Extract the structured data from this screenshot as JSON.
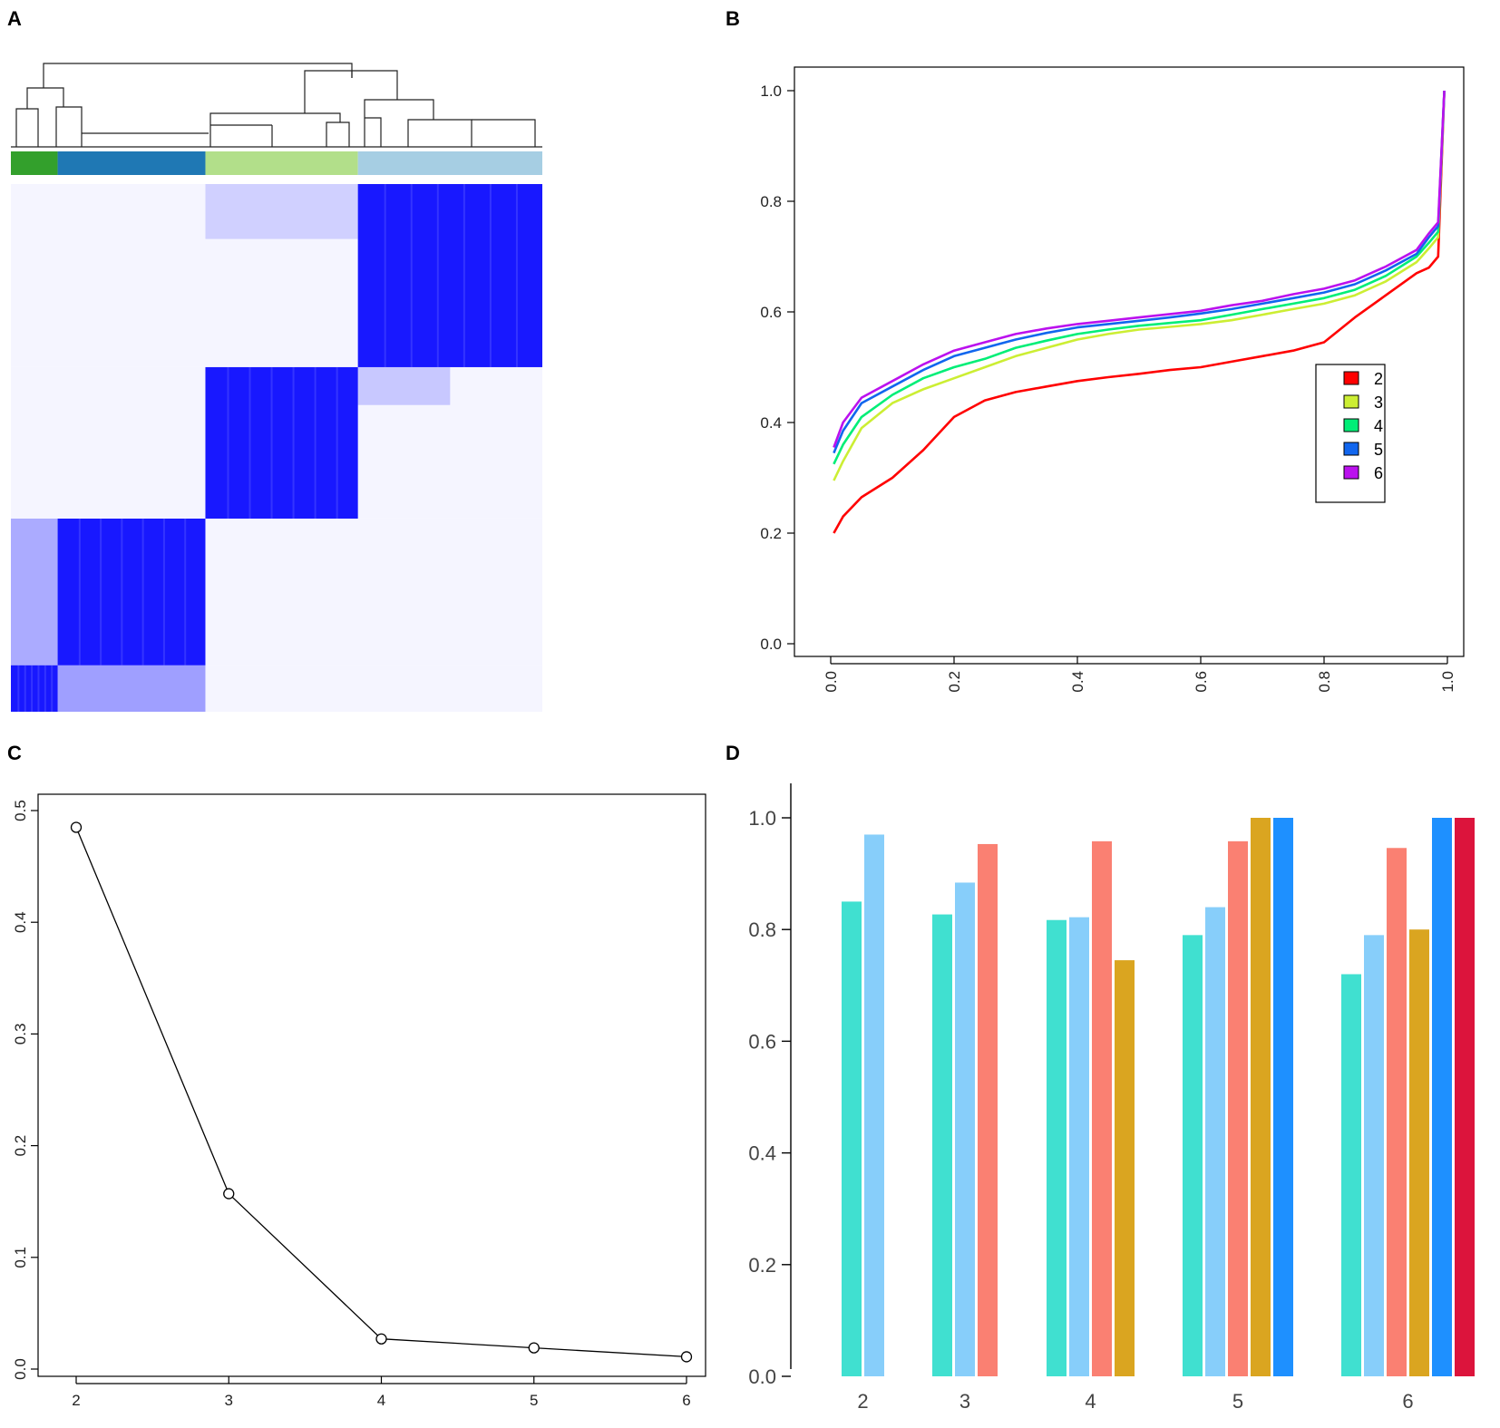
{
  "panels": {
    "a": "A",
    "b": "B",
    "c": "C",
    "d": "D"
  },
  "chart_data": [
    {
      "panel": "A",
      "type": "heatmap",
      "title": "",
      "cluster_colors": [
        "#33a02c",
        "#1f78b4",
        "#b2df8a",
        "#a6cee3"
      ],
      "cluster_fractions": [
        0.088,
        0.278,
        0.287,
        0.347
      ],
      "heatmap_color": "#0000ff",
      "description_note": "consensus matrix, blocks ordered to match dendrogram"
    },
    {
      "panel": "B",
      "type": "line",
      "title": "",
      "xlabel": "",
      "ylabel": "",
      "xlim": [
        0.0,
        1.0
      ],
      "ylim": [
        0.0,
        1.0
      ],
      "xticks": [
        "0.0",
        "0.2",
        "0.4",
        "0.6",
        "0.8",
        "1.0"
      ],
      "yticks": [
        "0.0",
        "0.2",
        "0.4",
        "0.6",
        "0.8",
        "1.0"
      ],
      "legend_position": "center-right",
      "x": [
        0.005,
        0.02,
        0.05,
        0.1,
        0.15,
        0.2,
        0.25,
        0.3,
        0.35,
        0.4,
        0.45,
        0.5,
        0.55,
        0.6,
        0.65,
        0.7,
        0.75,
        0.8,
        0.85,
        0.9,
        0.95,
        0.97,
        0.985,
        0.995
      ],
      "series": [
        {
          "name": "2",
          "color": "#ff0000",
          "values": [
            0.2,
            0.23,
            0.265,
            0.3,
            0.35,
            0.41,
            0.44,
            0.455,
            0.465,
            0.475,
            0.482,
            0.488,
            0.495,
            0.5,
            0.51,
            0.52,
            0.53,
            0.545,
            0.59,
            0.63,
            0.67,
            0.68,
            0.7,
            1.0
          ]
        },
        {
          "name": "3",
          "color": "#ccee33",
          "values": [
            0.295,
            0.33,
            0.39,
            0.435,
            0.46,
            0.48,
            0.5,
            0.52,
            0.535,
            0.55,
            0.56,
            0.568,
            0.573,
            0.578,
            0.585,
            0.595,
            0.605,
            0.615,
            0.63,
            0.655,
            0.69,
            0.715,
            0.735,
            1.0
          ]
        },
        {
          "name": "4",
          "color": "#00ee77",
          "values": [
            0.325,
            0.36,
            0.41,
            0.45,
            0.48,
            0.5,
            0.515,
            0.535,
            0.548,
            0.56,
            0.568,
            0.575,
            0.58,
            0.585,
            0.595,
            0.605,
            0.615,
            0.625,
            0.64,
            0.665,
            0.7,
            0.725,
            0.745,
            1.0
          ]
        },
        {
          "name": "5",
          "color": "#1166ee",
          "values": [
            0.345,
            0.385,
            0.435,
            0.465,
            0.495,
            0.52,
            0.535,
            0.55,
            0.562,
            0.572,
            0.578,
            0.584,
            0.59,
            0.597,
            0.605,
            0.615,
            0.625,
            0.635,
            0.65,
            0.675,
            0.705,
            0.735,
            0.755,
            1.0
          ]
        },
        {
          "name": "6",
          "color": "#bb11ee",
          "values": [
            0.355,
            0.4,
            0.445,
            0.475,
            0.505,
            0.53,
            0.545,
            0.56,
            0.57,
            0.578,
            0.584,
            0.59,
            0.596,
            0.602,
            0.612,
            0.62,
            0.632,
            0.642,
            0.657,
            0.682,
            0.712,
            0.742,
            0.762,
            1.0
          ]
        }
      ]
    },
    {
      "panel": "C",
      "type": "line",
      "title": "",
      "xlabel": "",
      "ylabel": "",
      "x": [
        2,
        3,
        4,
        5,
        6
      ],
      "values": [
        0.485,
        0.157,
        0.027,
        0.019,
        0.011
      ],
      "xlim": [
        1.8,
        6.2
      ],
      "ylim": [
        0.0,
        0.5
      ],
      "xticks": [
        "2",
        "3",
        "4",
        "5",
        "6"
      ],
      "yticks": [
        "0.0",
        "0.1",
        "0.2",
        "0.3",
        "0.4",
        "0.5"
      ]
    },
    {
      "panel": "D",
      "type": "bar",
      "title": "",
      "xlabel": "",
      "ylabel": "",
      "ylim": [
        0.0,
        1.0
      ],
      "categories": [
        "2",
        "3",
        "4",
        "5",
        "6"
      ],
      "yticks": [
        "0.0",
        "0.2",
        "0.4",
        "0.6",
        "0.8",
        "1.0"
      ],
      "cluster_colors": [
        "#40e0d0",
        "#87cefa",
        "#fa8072",
        "#daa520",
        "#1e90ff",
        "#dc143c"
      ],
      "groups": [
        [
          0.85,
          0.97
        ],
        [
          0.827,
          0.884,
          0.953
        ],
        [
          0.817,
          0.822,
          0.958,
          0.745
        ],
        [
          0.79,
          0.84,
          0.958,
          1.0,
          1.0
        ],
        [
          0.72,
          0.79,
          0.946,
          0.8,
          1.0,
          1.0
        ]
      ]
    }
  ]
}
